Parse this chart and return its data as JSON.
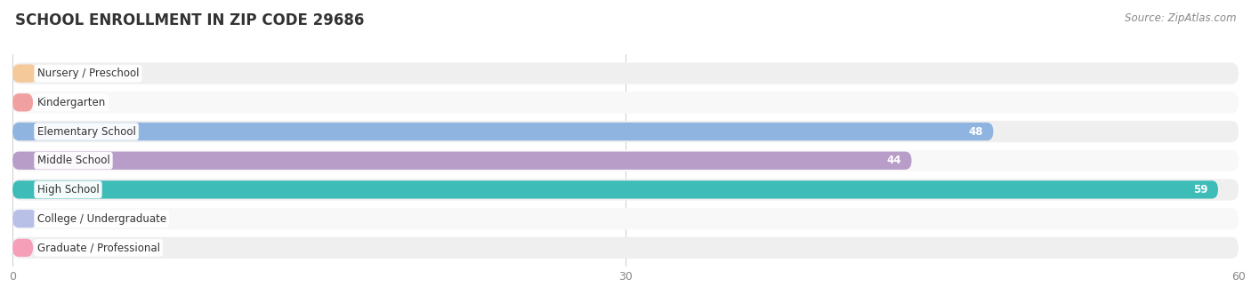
{
  "title": "SCHOOL ENROLLMENT IN ZIP CODE 29686",
  "source": "Source: ZipAtlas.com",
  "categories": [
    "Nursery / Preschool",
    "Kindergarten",
    "Elementary School",
    "Middle School",
    "High School",
    "College / Undergraduate",
    "Graduate / Professional"
  ],
  "values": [
    0,
    1,
    48,
    44,
    59,
    0,
    1
  ],
  "bar_colors": [
    "#f5c99a",
    "#f0a0a0",
    "#8fb4e0",
    "#b89dc8",
    "#3dbcb8",
    "#b8c0e8",
    "#f5a0b8"
  ],
  "title_fontsize": 12,
  "source_fontsize": 8.5,
  "label_fontsize": 8.5,
  "bar_label_fontsize": 8.5,
  "xlim": [
    0,
    60
  ],
  "xticks": [
    0,
    30,
    60
  ],
  "background_color": "#ffffff",
  "row_bg_even": "#efefef",
  "row_bg_odd": "#f8f8f8",
  "figsize": [
    14.06,
    3.41
  ]
}
